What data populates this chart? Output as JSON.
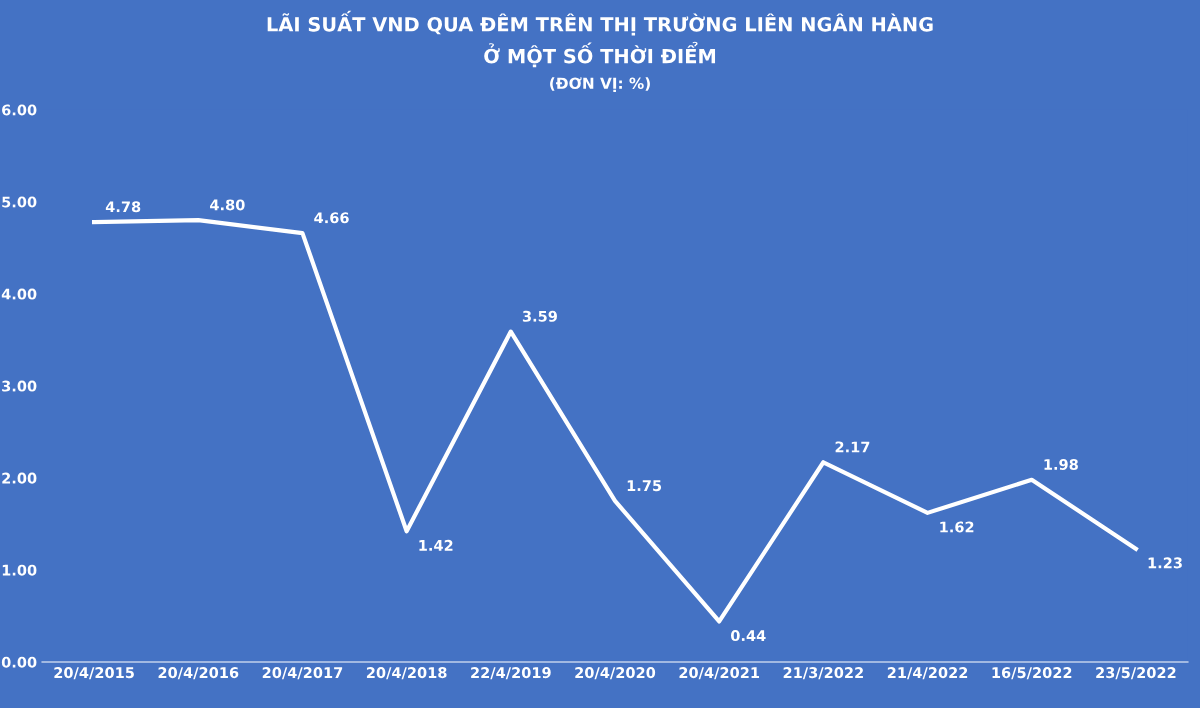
{
  "chart_data": {
    "type": "line",
    "title": "LÃI SUẤT VND QUA ĐÊM TRÊN THỊ TRƯỜNG LIÊN NGÂN HÀNG\nỞ MỘT SỐ THỜI ĐIỂM",
    "subtitle": "(ĐƠN VỊ: %)",
    "categories": [
      "20/4/2015",
      "20/4/2016",
      "20/4/2017",
      "20/4/2018",
      "22/4/2019",
      "20/4/2020",
      "20/4/2021",
      "21/3/2022",
      "21/4/2022",
      "16/5/2022",
      "23/5/2022"
    ],
    "series": [
      {
        "color": "#ffffff",
        "values": [
          4.78,
          4.8,
          4.66,
          1.42,
          3.59,
          1.75,
          0.44,
          2.17,
          1.62,
          1.98,
          1.23
        ],
        "value_labels": [
          "4.78",
          "4.80",
          "4.66",
          "1.42",
          "3.59",
          "1.75",
          "0.44",
          "2.17",
          "1.62",
          "1.98",
          "1.23"
        ]
      }
    ],
    "ylim": [
      0,
      6
    ],
    "yticks": [
      {
        "value": 0,
        "label": "0.00"
      },
      {
        "value": 1,
        "label": "1.00"
      },
      {
        "value": 2,
        "label": "2.00"
      },
      {
        "value": 3,
        "label": "3.00"
      },
      {
        "value": 4,
        "label": "4.00"
      },
      {
        "value": 5,
        "label": "5.00"
      },
      {
        "value": 6,
        "label": "6.00"
      }
    ],
    "grid": false,
    "marker": "none",
    "line_style": "solid"
  }
}
